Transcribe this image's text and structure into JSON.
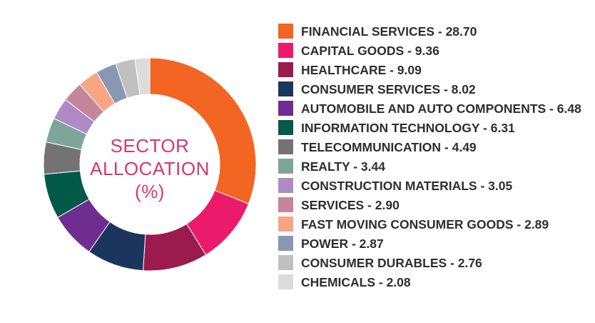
{
  "chart_data": {
    "type": "pie",
    "donut": true,
    "center_title": [
      "SECTOR",
      "ALLOCATION",
      "(%)"
    ],
    "legend_placement": "right",
    "categories": [
      "FINANCIAL SERVICES",
      "CAPITAL GOODS",
      "HEALTHCARE",
      "CONSUMER SERVICES",
      "AUTOMOBILE AND AUTO COMPONENTS",
      "INFORMATION TECHNOLOGY",
      "TELECOMMUNICATION",
      "REALTY",
      "CONSTRUCTION MATERIALS",
      "SERVICES",
      "FAST MOVING CONSUMER GOODS",
      "POWER",
      "CONSUMER DURABLES",
      "CHEMICALS"
    ],
    "values": [
      28.7,
      9.36,
      9.09,
      8.02,
      6.48,
      6.31,
      4.49,
      3.44,
      3.05,
      2.9,
      2.89,
      2.87,
      2.76,
      2.08
    ],
    "labels": [
      "28.70",
      "9.36",
      "9.09",
      "8.02",
      "6.48",
      "6.31",
      "4.49",
      "3.44",
      "3.05",
      "2.90",
      "2.89",
      "2.87",
      "2.76",
      "2.08"
    ],
    "colors": [
      "#f26522",
      "#ec1a6a",
      "#9b1b4e",
      "#1b355e",
      "#6f2c91",
      "#005a46",
      "#737373",
      "#7ea59a",
      "#ae8bc4",
      "#c5869c",
      "#f7a585",
      "#8898b2",
      "#c0c0c0",
      "#dcdcdc"
    ]
  }
}
